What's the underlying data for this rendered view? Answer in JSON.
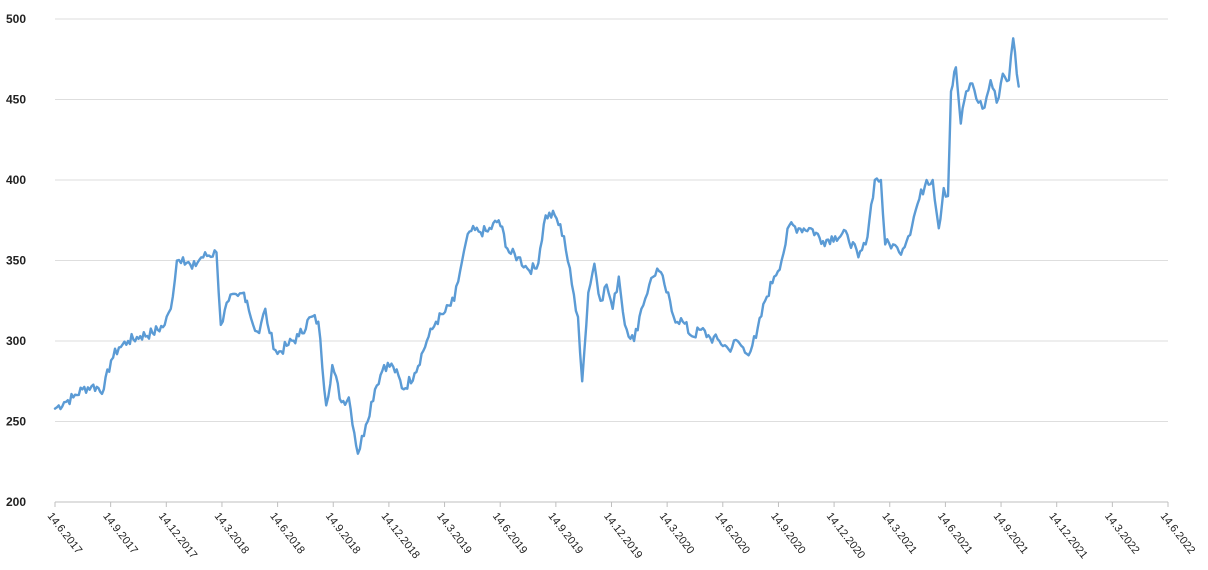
{
  "chart_data": {
    "type": "line",
    "title": "",
    "xlabel": "",
    "ylabel": "",
    "ylim": [
      200,
      500
    ],
    "y_ticks": [
      "200",
      "250",
      "300",
      "350",
      "400",
      "450",
      "500"
    ],
    "x_ticks": [
      "14.6.2017",
      "14.9.2017",
      "14.12.2017",
      "14.3.2018",
      "14.6.2018",
      "14.9.2018",
      "14.12.2018",
      "14.3.2019",
      "14.6.2019",
      "14.9.2019",
      "14.12.2019",
      "14.3.2020",
      "14.6.2020",
      "14.9.2020",
      "14.12.2020",
      "14.3.2021",
      "14.6.2021",
      "14.9.2021",
      "14.12.2021",
      "14.3.2022",
      "14.6.2022"
    ],
    "grid": true,
    "legend": "none",
    "series_color": "#5b9bd5",
    "x_unit": "days since 14.6.2017",
    "series": [
      {
        "values": [
          [
            0,
            258
          ],
          [
            15,
            262
          ],
          [
            30,
            265
          ],
          [
            45,
            270
          ],
          [
            60,
            272
          ],
          [
            80,
            270
          ],
          [
            92,
            288
          ],
          [
            105,
            296
          ],
          [
            120,
            300
          ],
          [
            140,
            303
          ],
          [
            160,
            305
          ],
          [
            180,
            310
          ],
          [
            190,
            320
          ],
          [
            200,
            350
          ],
          [
            210,
            352
          ],
          [
            225,
            345
          ],
          [
            240,
            352
          ],
          [
            265,
            355
          ],
          [
            272,
            310
          ],
          [
            285,
            325
          ],
          [
            300,
            328
          ],
          [
            310,
            330
          ],
          [
            315,
            325
          ],
          [
            325,
            310
          ],
          [
            335,
            305
          ],
          [
            345,
            320
          ],
          [
            352,
            305
          ],
          [
            365,
            292
          ],
          [
            380,
            297
          ],
          [
            400,
            303
          ],
          [
            420,
            315
          ],
          [
            432,
            312
          ],
          [
            445,
            260
          ],
          [
            455,
            285
          ],
          [
            470,
            262
          ],
          [
            482,
            265
          ],
          [
            497,
            230
          ],
          [
            510,
            248
          ],
          [
            525,
            270
          ],
          [
            540,
            285
          ],
          [
            555,
            284
          ],
          [
            572,
            270
          ],
          [
            590,
            280
          ],
          [
            610,
            300
          ],
          [
            625,
            312
          ],
          [
            640,
            318
          ],
          [
            655,
            325
          ],
          [
            668,
            350
          ],
          [
            680,
            368
          ],
          [
            695,
            368
          ],
          [
            710,
            368
          ],
          [
            728,
            375
          ],
          [
            745,
            355
          ],
          [
            760,
            352
          ],
          [
            775,
            345
          ],
          [
            790,
            345
          ],
          [
            805,
            378
          ],
          [
            820,
            378
          ],
          [
            835,
            365
          ],
          [
            848,
            335
          ],
          [
            858,
            315
          ],
          [
            865,
            275
          ],
          [
            875,
            330
          ],
          [
            885,
            348
          ],
          [
            895,
            325
          ],
          [
            905,
            335
          ],
          [
            915,
            320
          ],
          [
            925,
            340
          ],
          [
            935,
            310
          ],
          [
            950,
            300
          ],
          [
            962,
            320
          ],
          [
            975,
            335
          ],
          [
            988,
            345
          ],
          [
            1000,
            335
          ],
          [
            1015,
            315
          ],
          [
            1030,
            312
          ],
          [
            1045,
            303
          ],
          [
            1060,
            307
          ],
          [
            1075,
            302
          ],
          [
            1090,
            300
          ],
          [
            1105,
            295
          ],
          [
            1120,
            300
          ],
          [
            1135,
            292
          ],
          [
            1150,
            302
          ],
          [
            1165,
            325
          ],
          [
            1180,
            340
          ],
          [
            1192,
            350
          ],
          [
            1205,
            372
          ],
          [
            1220,
            370
          ],
          [
            1240,
            370
          ],
          [
            1260,
            362
          ],
          [
            1280,
            365
          ],
          [
            1300,
            366
          ],
          [
            1318,
            352
          ],
          [
            1330,
            360
          ],
          [
            1345,
            400
          ],
          [
            1355,
            400
          ],
          [
            1362,
            360
          ],
          [
            1375,
            360
          ],
          [
            1385,
            355
          ],
          [
            1400,
            365
          ],
          [
            1415,
            385
          ],
          [
            1430,
            400
          ],
          [
            1440,
            400
          ],
          [
            1450,
            370
          ],
          [
            1458,
            395
          ],
          [
            1465,
            390
          ],
          [
            1470,
            455
          ],
          [
            1478,
            470
          ],
          [
            1486,
            435
          ],
          [
            1495,
            455
          ],
          [
            1505,
            460
          ],
          [
            1515,
            448
          ],
          [
            1525,
            445
          ],
          [
            1535,
            462
          ],
          [
            1545,
            448
          ],
          [
            1555,
            466
          ],
          [
            1565,
            462
          ],
          [
            1572,
            488
          ],
          [
            1581,
            458
          ]
        ]
      }
    ]
  }
}
